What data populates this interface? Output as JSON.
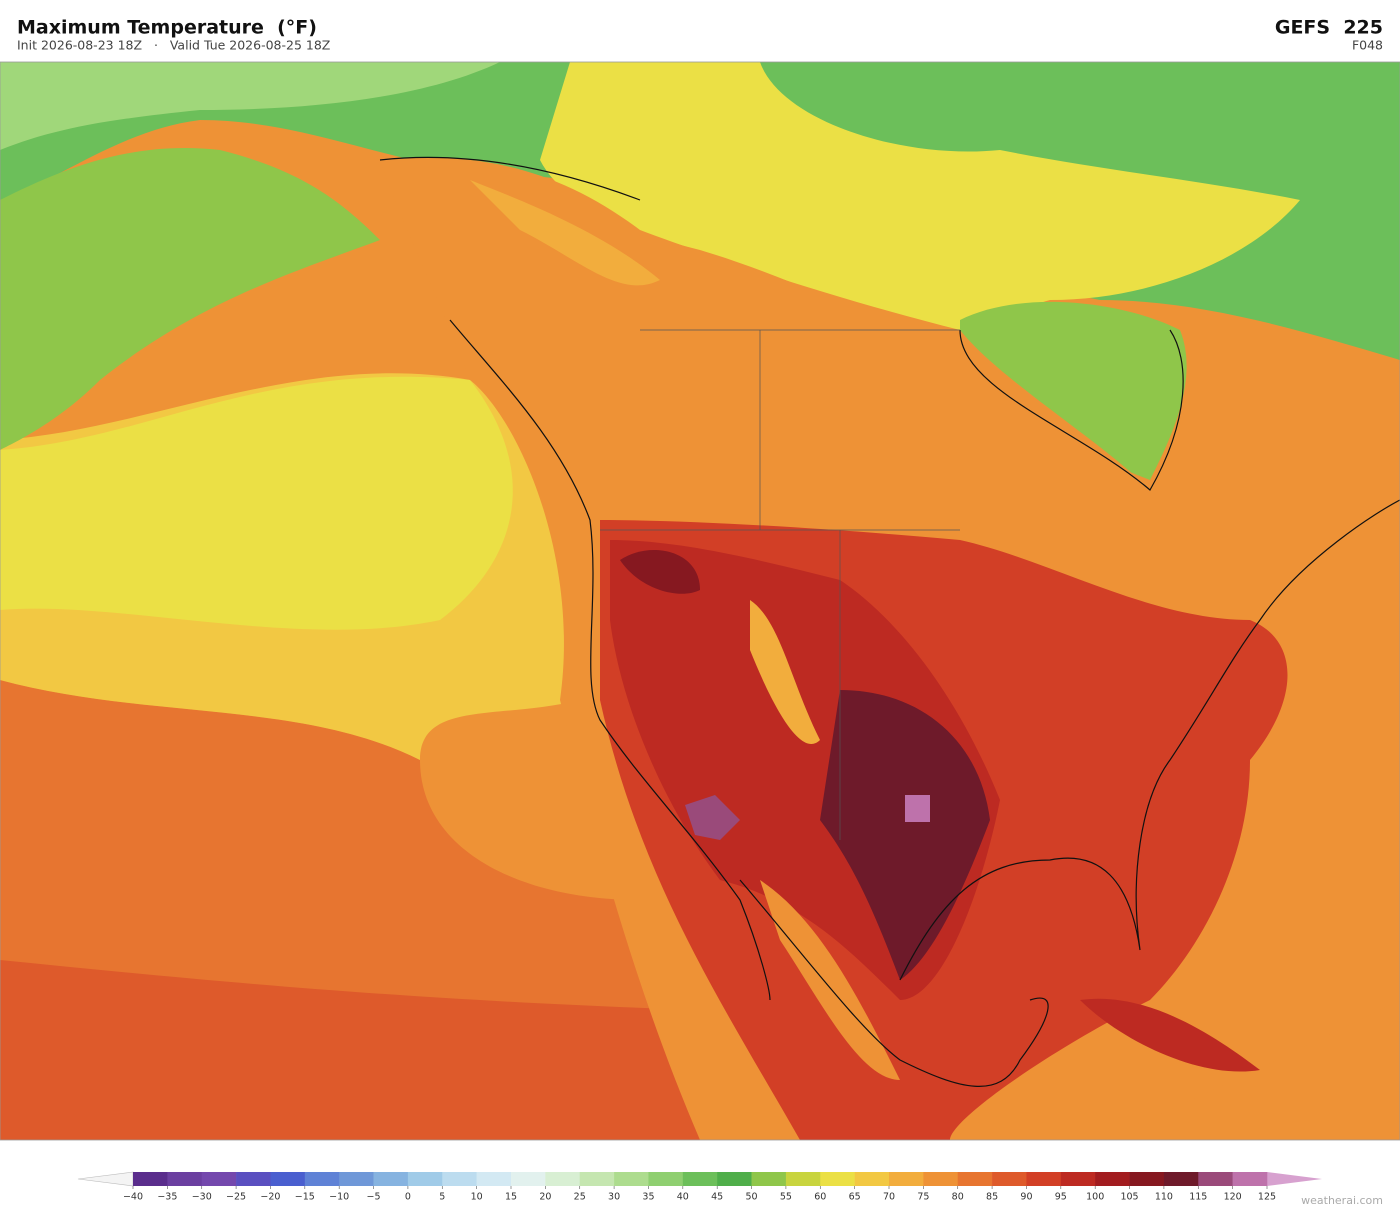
{
  "header": {
    "title": "Maximum Temperature  (°F)",
    "subtitle": "Init 2026-08-23 18Z   ·   Valid Tue 2026-08-25 18Z",
    "model": "GEFS  225",
    "forecast_hour": "F048"
  },
  "colorbar": {
    "ticks": [
      {
        "value": -40,
        "label": "−40"
      },
      {
        "value": -35,
        "label": "−35"
      },
      {
        "value": -30,
        "label": "−30"
      },
      {
        "value": -25,
        "label": "−25"
      },
      {
        "value": -20,
        "label": "−20"
      },
      {
        "value": -15,
        "label": "−15"
      },
      {
        "value": -10,
        "label": "−10"
      },
      {
        "value": -5,
        "label": "−5"
      },
      0,
      5,
      10,
      15,
      20,
      25,
      30,
      35,
      40,
      45,
      50,
      55,
      60,
      65,
      70,
      75,
      80,
      85,
      90,
      95,
      100,
      105,
      110,
      115,
      120,
      125
    ],
    "colors": [
      "#5a2d8c",
      "#6b3fa0",
      "#7448ad",
      "#5a4fc0",
      "#4a5fcf",
      "#5f82d6",
      "#6f98d8",
      "#86b3e0",
      "#a0cbe8",
      "#bcdcef",
      "#d3e9f3",
      "#e2f1ee",
      "#d8efd3",
      "#c5e6b0",
      "#addc8e",
      "#8fcf70",
      "#6cbf5a",
      "#4fae4a",
      "#8fc64a",
      "#c8d43e",
      "#ebe045",
      "#f2c843",
      "#f2ad3d",
      "#ee9236",
      "#e77530",
      "#de5a2b",
      "#d23f26",
      "#bd2a22",
      "#a21c1f",
      "#861820",
      "#6e1a2a",
      "#9a4a7a",
      "#be72ab"
    ],
    "under_color": "#f4f4f4",
    "over_color": "#d7a1cf"
  },
  "watermark": "weatherai.com"
}
